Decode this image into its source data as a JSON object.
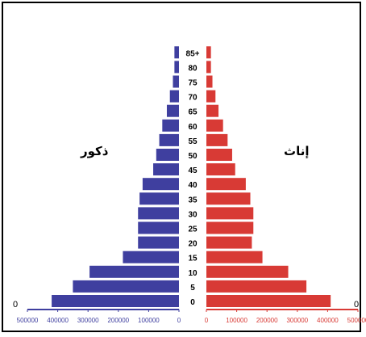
{
  "chart_data": {
    "type": "bar",
    "orientation": "population-pyramid",
    "age_groups": [
      "0",
      "5",
      "10",
      "15",
      "20",
      "25",
      "30",
      "35",
      "40",
      "45",
      "50",
      "55",
      "60",
      "65",
      "70",
      "75",
      "80",
      "85+"
    ],
    "age_tick_labels": [
      "0",
      "5",
      "10",
      "15",
      "20",
      "25",
      "30",
      "35",
      "40",
      "45",
      "50",
      "55",
      "60",
      "65",
      "70",
      "75",
      "80",
      "85+"
    ],
    "series": [
      {
        "name": "ذكور",
        "side": "left",
        "color": "#3f3f9f",
        "values": [
          420000,
          350000,
          295000,
          185000,
          135000,
          135000,
          135000,
          130000,
          120000,
          85000,
          75000,
          65000,
          55000,
          40000,
          30000,
          20000,
          15000,
          15000
        ]
      },
      {
        "name": "إناث",
        "side": "right",
        "color": "#d83a35",
        "values": [
          410000,
          330000,
          270000,
          185000,
          150000,
          155000,
          155000,
          145000,
          130000,
          95000,
          85000,
          70000,
          55000,
          40000,
          30000,
          20000,
          15000,
          15000
        ]
      }
    ],
    "x_ticks_left": [
      "500000",
      "400000",
      "300000",
      "200000",
      "100000",
      "0"
    ],
    "x_ticks_right": [
      "0",
      "100000",
      "200000",
      "300000",
      "400000",
      "500000"
    ],
    "xlim": [
      0,
      500000
    ],
    "edge_zero_label": "0",
    "grid": false
  }
}
